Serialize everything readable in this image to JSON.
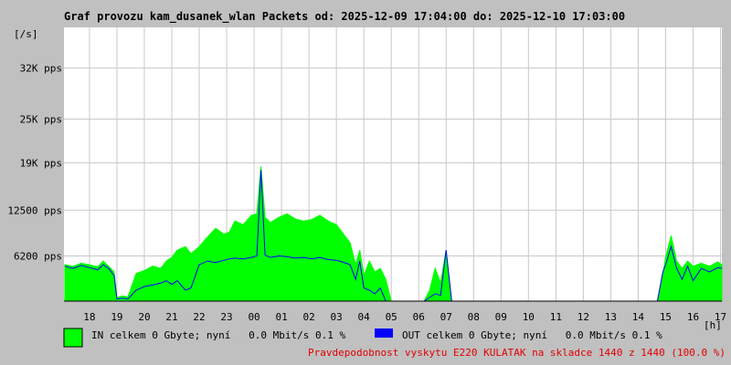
{
  "chart_data": {
    "type": "area",
    "title": "Graf provozu kam_dusanek_wlan Packets od: 2025-12-09 17:04:00 do: 2025-12-10 17:03:00",
    "ylabel": "[/s]",
    "xlabel": "[h]",
    "x_ticks": [
      "18",
      "19",
      "20",
      "21",
      "22",
      "23",
      "00",
      "01",
      "02",
      "03",
      "04",
      "05",
      "06",
      "07",
      "08",
      "09",
      "10",
      "11",
      "12",
      "13",
      "14",
      "15",
      "16",
      "17"
    ],
    "y_ticks": [
      {
        "value": 6200,
        "label": "6200 pps"
      },
      {
        "value": 12500,
        "label": "12500 pps"
      },
      {
        "value": 19000,
        "label": "19K pps"
      },
      {
        "value": 25000,
        "label": "25K pps"
      },
      {
        "value": 32000,
        "label": "32K pps"
      }
    ],
    "ylim": [
      0,
      37600
    ],
    "xlim": [
      17.07,
      41.05
    ],
    "grid": true,
    "series": [
      {
        "name": "IN",
        "color": "#00ff00",
        "x": [
          17.1,
          17.4,
          17.7,
          18.0,
          18.3,
          18.5,
          18.7,
          18.9,
          19.0,
          19.2,
          19.4,
          19.7,
          20.0,
          20.3,
          20.6,
          20.8,
          21.0,
          21.2,
          21.5,
          21.7,
          22.0,
          22.3,
          22.6,
          22.9,
          23.1,
          23.3,
          23.6,
          23.9,
          24.1,
          24.25,
          24.4,
          24.6,
          24.9,
          25.2,
          25.5,
          25.8,
          26.1,
          26.4,
          26.7,
          27.0,
          27.2,
          27.5,
          27.7,
          27.85,
          28.0,
          28.2,
          28.4,
          28.6,
          28.8,
          29.0,
          29.2,
          29.4,
          29.6,
          29.8,
          30.0,
          30.2,
          30.4,
          30.6,
          30.8,
          31.0,
          31.2,
          31.4,
          31.6,
          31.8,
          32.0,
          38.7,
          38.9,
          39.0,
          39.2,
          39.4,
          39.6,
          39.8,
          40.0,
          40.3,
          40.6,
          40.9,
          41.05
        ],
        "values": [
          5000,
          4800,
          5200,
          5000,
          4700,
          5500,
          4800,
          4000,
          500,
          700,
          600,
          3800,
          4200,
          4800,
          4500,
          5500,
          6000,
          7000,
          7500,
          6500,
          7500,
          8800,
          10000,
          9200,
          9500,
          11000,
          10500,
          11800,
          12000,
          18500,
          11500,
          10800,
          11500,
          12000,
          11300,
          11000,
          11200,
          11800,
          11000,
          10500,
          9500,
          8000,
          5000,
          7000,
          3500,
          5500,
          4000,
          4500,
          3000,
          0,
          0,
          0,
          0,
          0,
          0,
          0,
          1500,
          4500,
          2500,
          7000,
          0,
          0,
          0,
          0,
          0,
          0,
          3500,
          6000,
          9000,
          5500,
          4500,
          5500,
          4800,
          5200,
          4800,
          5400,
          5000
        ]
      },
      {
        "name": "OUT",
        "color": "#0000ff",
        "x": [
          17.1,
          17.4,
          17.7,
          18.0,
          18.3,
          18.5,
          18.7,
          18.9,
          19.0,
          19.2,
          19.4,
          19.7,
          20.0,
          20.3,
          20.6,
          20.8,
          21.0,
          21.2,
          21.5,
          21.7,
          22.0,
          22.3,
          22.6,
          22.9,
          23.1,
          23.3,
          23.6,
          23.9,
          24.1,
          24.25,
          24.4,
          24.6,
          24.9,
          25.2,
          25.5,
          25.8,
          26.1,
          26.4,
          26.7,
          27.0,
          27.2,
          27.5,
          27.7,
          27.85,
          28.0,
          28.2,
          28.4,
          28.6,
          28.8,
          29.0,
          29.2,
          29.4,
          29.6,
          29.8,
          30.0,
          30.2,
          30.4,
          30.6,
          30.8,
          31.0,
          31.2,
          31.4,
          31.6,
          31.8,
          32.0,
          38.7,
          38.9,
          39.0,
          39.2,
          39.4,
          39.6,
          39.8,
          40.0,
          40.3,
          40.6,
          40.9,
          41.05
        ],
        "values": [
          4800,
          4500,
          4900,
          4600,
          4300,
          5000,
          4500,
          3500,
          300,
          400,
          300,
          1500,
          2000,
          2200,
          2500,
          2800,
          2300,
          2800,
          1500,
          1800,
          5000,
          5500,
          5300,
          5600,
          5800,
          5900,
          5800,
          6000,
          6200,
          18000,
          6300,
          6000,
          6200,
          6100,
          5900,
          6000,
          5800,
          6000,
          5700,
          5600,
          5400,
          5000,
          3000,
          5500,
          1800,
          1500,
          1000,
          1800,
          0,
          0,
          0,
          0,
          0,
          0,
          0,
          0,
          500,
          1000,
          800,
          7000,
          0,
          0,
          0,
          0,
          0,
          0,
          4000,
          5000,
          7500,
          4500,
          3000,
          4800,
          2800,
          4500,
          4000,
          4600,
          4500
        ]
      }
    ]
  },
  "legend": {
    "in_text": "IN celkem 0 Gbyte; nyní   0.0 Mbit/s 0.1 %",
    "out_text": "OUT celkem 0 Gbyte; nyní   0.0 Mbit/s 0.1 %"
  },
  "footer": "Pravdepodobnost vyskytu E220 KULATAK na skladce 1440 z 1440 (100.0 %)"
}
